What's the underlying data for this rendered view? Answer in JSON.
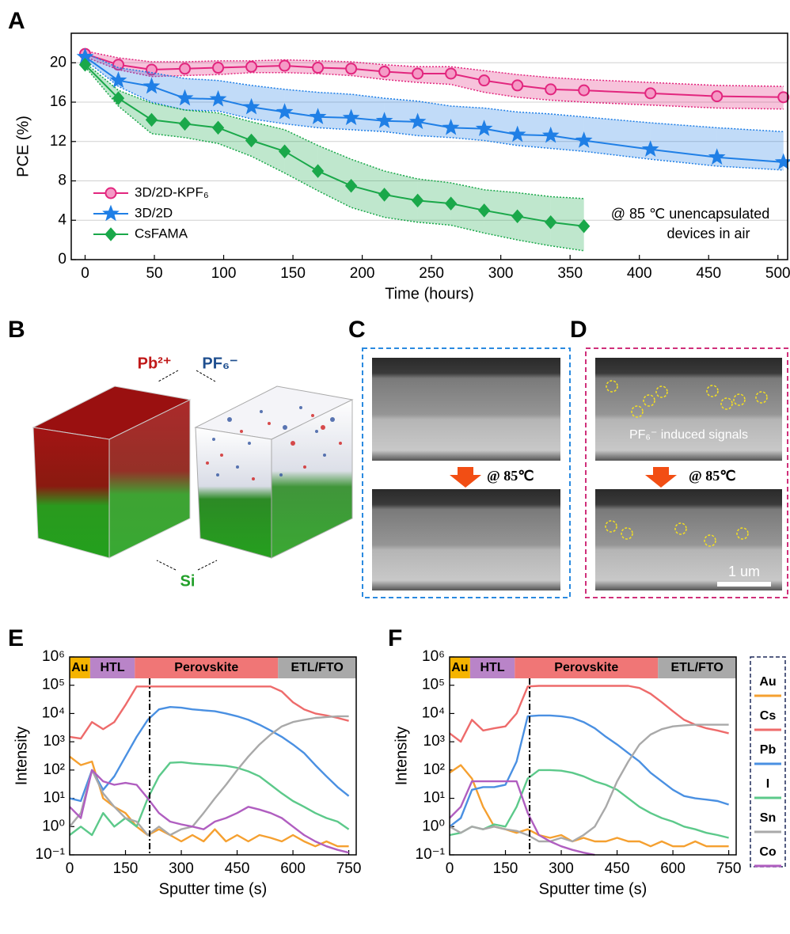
{
  "panel_labels": [
    "A",
    "B",
    "C",
    "D",
    "E",
    "F"
  ],
  "images": {
    "B": {
      "labels": [
        "Pb²⁺",
        "PF₆⁻",
        "Si"
      ]
    },
    "C": {
      "condition": "@ 85℃"
    },
    "D": {
      "annotation": "PF₆⁻ induced signals",
      "condition": "@ 85℃",
      "scale_bar": "1 um"
    }
  },
  "chart_data": [
    {
      "type": "line",
      "xlabel": "Time (hours)",
      "ylabel": "PCE (%)",
      "xlim": [
        -10,
        507
      ],
      "ylim": [
        0,
        23
      ],
      "xticks": [
        0,
        50,
        100,
        150,
        200,
        250,
        300,
        350,
        400,
        450,
        500
      ],
      "yticks": [
        0,
        4,
        8,
        12,
        16,
        20
      ],
      "grid": true,
      "legend": "lower left",
      "annotation": [
        "@ 85 ℃ unencapsulated",
        "devices in air"
      ],
      "series": [
        {
          "name": "3D/2D-KPF₆",
          "color": "#e2267e",
          "marker": "circle",
          "x": [
            0,
            24,
            48,
            72,
            96,
            120,
            144,
            168,
            192,
            216,
            240,
            264,
            288,
            312,
            336,
            360,
            408,
            456,
            504
          ],
          "values": [
            20.9,
            19.8,
            19.3,
            19.4,
            19.5,
            19.6,
            19.7,
            19.5,
            19.4,
            19.1,
            18.9,
            18.9,
            18.2,
            17.7,
            17.3,
            17.2,
            16.9,
            16.6,
            16.5
          ],
          "upper": [
            21.2,
            20.5,
            20.1,
            20.1,
            20.2,
            20.2,
            20.3,
            20.2,
            20.1,
            19.8,
            19.6,
            19.6,
            19.2,
            18.8,
            18.5,
            18.3,
            18.0,
            17.7,
            17.6
          ],
          "lower": [
            20.6,
            19.3,
            18.6,
            18.7,
            18.8,
            19.0,
            19.0,
            18.9,
            18.7,
            18.3,
            18.0,
            17.8,
            17.0,
            16.5,
            16.2,
            16.0,
            15.7,
            15.4,
            15.3
          ]
        },
        {
          "name": "3D/2D",
          "color": "#1f7fe6",
          "marker": "star",
          "x": [
            0,
            24,
            48,
            72,
            96,
            120,
            144,
            168,
            192,
            216,
            240,
            264,
            288,
            312,
            336,
            360,
            408,
            456,
            504
          ],
          "values": [
            20.6,
            18.2,
            17.6,
            16.4,
            16.3,
            15.5,
            15.0,
            14.5,
            14.4,
            14.1,
            14.0,
            13.4,
            13.3,
            12.7,
            12.6,
            12.1,
            11.2,
            10.4,
            9.9
          ],
          "upper": [
            21.0,
            19.5,
            19.0,
            18.4,
            18.2,
            17.7,
            17.3,
            17.0,
            16.8,
            16.4,
            16.1,
            15.6,
            15.4,
            15.0,
            14.8,
            14.5,
            13.9,
            13.4,
            13.0
          ],
          "lower": [
            20.3,
            17.6,
            16.0,
            15.2,
            15.1,
            14.3,
            13.8,
            13.4,
            13.2,
            13.0,
            12.6,
            12.4,
            12.1,
            11.6,
            11.3,
            11.0,
            10.2,
            9.5,
            9.1
          ]
        },
        {
          "name": "CsFAMA",
          "color": "#1aa84a",
          "marker": "diamond",
          "x": [
            0,
            24,
            48,
            72,
            96,
            120,
            144,
            168,
            192,
            216,
            240,
            264,
            288,
            312,
            336,
            360
          ],
          "values": [
            19.8,
            16.4,
            14.2,
            13.8,
            13.4,
            12.1,
            11.0,
            9.0,
            7.5,
            6.6,
            6.0,
            5.7,
            5.0,
            4.4,
            3.8,
            3.4
          ],
          "upper": [
            20.0,
            17.2,
            15.9,
            15.2,
            14.9,
            14.0,
            13.2,
            11.6,
            10.2,
            9.0,
            8.2,
            7.8,
            7.1,
            6.8,
            6.4,
            6.2
          ],
          "lower": [
            19.6,
            15.6,
            12.8,
            12.4,
            11.8,
            10.5,
            8.8,
            7.0,
            5.3,
            4.3,
            3.8,
            3.5,
            2.7,
            2.0,
            1.4,
            0.9
          ]
        }
      ]
    },
    {
      "type": "line",
      "log_y": true,
      "xlabel": "Sputter time (s)",
      "ylabel": "Intensity",
      "xlim": [
        0,
        770
      ],
      "ylim": [
        0.1,
        1000000
      ],
      "xticks": [
        0,
        150,
        300,
        450,
        600,
        750
      ],
      "yticks": [
        {
          "value": 0.1,
          "label": "10⁻¹"
        },
        {
          "value": 1,
          "label": "10⁰"
        },
        {
          "value": 10,
          "label": "10¹"
        },
        {
          "value": 100,
          "label": "10²"
        },
        {
          "value": 1000,
          "label": "10³"
        },
        {
          "value": 10000,
          "label": "10⁴"
        },
        {
          "value": 100000,
          "label": "10⁵"
        },
        {
          "value": 1000000,
          "label": "10⁶"
        }
      ],
      "regions": [
        {
          "label": "Au",
          "start": 0,
          "end": 55,
          "color": "#f5b400"
        },
        {
          "label": "HTL",
          "start": 55,
          "end": 175,
          "color": "#b984c8"
        },
        {
          "label": "Perovskite",
          "start": 175,
          "end": 560,
          "color": "#f07676"
        },
        {
          "label": "ETL/FTO",
          "start": 560,
          "end": 770,
          "color": "#a9a9a9"
        }
      ],
      "divider_x": 215,
      "x": [
        0,
        30,
        60,
        90,
        120,
        150,
        180,
        210,
        240,
        270,
        300,
        330,
        360,
        390,
        420,
        450,
        480,
        510,
        540,
        570,
        600,
        630,
        660,
        690,
        720,
        750
      ],
      "series": [
        {
          "name": "Au",
          "color": "#f5a030",
          "values": [
            300,
            150,
            200,
            10,
            5,
            3,
            1,
            0.5,
            0.8,
            0.5,
            0.3,
            0.5,
            0.3,
            0.8,
            0.3,
            0.5,
            0.3,
            0.5,
            0.4,
            0.3,
            0.5,
            0.3,
            0.2,
            0.3,
            0.2,
            0.2
          ]
        },
        {
          "name": "Cs",
          "color": "#ee6b6b",
          "values": [
            1500,
            1300,
            5000,
            2800,
            5000,
            20000,
            90000,
            90000,
            90000,
            90000,
            90000,
            90000,
            90000,
            90000,
            90000,
            90000,
            90000,
            90000,
            90000,
            60000,
            25000,
            14000,
            10000,
            8500,
            7000,
            5500
          ]
        },
        {
          "name": "Pb",
          "color": "#4a90e2",
          "values": [
            10,
            8,
            100,
            20,
            60,
            300,
            1500,
            6000,
            14000,
            17000,
            16000,
            14000,
            13000,
            12000,
            10000,
            8000,
            6000,
            4000,
            2500,
            1500,
            800,
            400,
            150,
            60,
            25,
            12
          ]
        },
        {
          "name": "I",
          "color": "#5cc98a",
          "values": [
            0.5,
            1,
            0.5,
            3,
            1,
            2,
            1,
            10,
            60,
            180,
            190,
            170,
            160,
            150,
            140,
            120,
            90,
            60,
            30,
            15,
            8,
            5,
            3,
            2,
            1.5,
            0.8
          ]
        },
        {
          "name": "Sn",
          "color": "#a9a9a9",
          "values": [
            1,
            3,
            100,
            15,
            5,
            2,
            1.5,
            0.5,
            1,
            0.5,
            0.8,
            1,
            3,
            10,
            30,
            100,
            300,
            800,
            1800,
            3500,
            5000,
            6000,
            7000,
            7500,
            8000,
            8000
          ]
        },
        {
          "name": "Co",
          "color": "#b05ec0",
          "values": [
            5,
            2,
            100,
            40,
            30,
            35,
            30,
            10,
            3,
            1.5,
            1.2,
            1,
            0.8,
            1.5,
            2,
            3,
            5,
            4,
            3,
            2,
            1,
            0.5,
            0.3,
            0.2,
            0.15,
            0.12
          ]
        }
      ]
    },
    {
      "type": "line",
      "log_y": true,
      "xlabel": "Sputter time (s)",
      "ylabel": "Intensity",
      "xlim": [
        0,
        770
      ],
      "ylim": [
        0.1,
        1000000
      ],
      "xticks": [
        0,
        150,
        300,
        450,
        600,
        750
      ],
      "yticks": [
        {
          "value": 0.1,
          "label": "10⁻¹"
        },
        {
          "value": 1,
          "label": "10⁰"
        },
        {
          "value": 10,
          "label": "10¹"
        },
        {
          "value": 100,
          "label": "10²"
        },
        {
          "value": 1000,
          "label": "10³"
        },
        {
          "value": 10000,
          "label": "10⁴"
        },
        {
          "value": 100000,
          "label": "10⁵"
        },
        {
          "value": 1000000,
          "label": "10⁶"
        }
      ],
      "regions": [
        {
          "label": "Au",
          "start": 0,
          "end": 55,
          "color": "#f5b400"
        },
        {
          "label": "HTL",
          "start": 55,
          "end": 175,
          "color": "#b984c8"
        },
        {
          "label": "Perovskite",
          "start": 175,
          "end": 560,
          "color": "#f07676"
        },
        {
          "label": "ETL/FTO",
          "start": 560,
          "end": 770,
          "color": "#a9a9a9"
        }
      ],
      "divider_x": 215,
      "x": [
        0,
        30,
        60,
        90,
        120,
        150,
        180,
        210,
        240,
        270,
        300,
        330,
        360,
        390,
        420,
        450,
        480,
        510,
        540,
        570,
        600,
        630,
        660,
        690,
        720,
        750
      ],
      "series": [
        {
          "name": "Au",
          "color": "#f5a030",
          "values": [
            80,
            150,
            50,
            5,
            1,
            0.8,
            0.6,
            0.8,
            0.5,
            0.4,
            0.5,
            0.3,
            0.4,
            0.3,
            0.3,
            0.4,
            0.3,
            0.3,
            0.2,
            0.3,
            0.2,
            0.2,
            0.3,
            0.2,
            0.2,
            0.2
          ]
        },
        {
          "name": "Cs",
          "color": "#ee6b6b",
          "values": [
            2000,
            1000,
            6000,
            2500,
            3000,
            3500,
            10000,
            90000,
            95000,
            95000,
            95000,
            95000,
            95000,
            95000,
            95000,
            95000,
            95000,
            80000,
            50000,
            25000,
            12000,
            6000,
            4000,
            3000,
            2500,
            2000
          ]
        },
        {
          "name": "Pb",
          "color": "#4a90e2",
          "values": [
            1,
            2,
            20,
            25,
            25,
            30,
            200,
            8000,
            8500,
            8500,
            8000,
            7000,
            5000,
            3000,
            1500,
            800,
            400,
            200,
            80,
            40,
            20,
            12,
            10,
            9,
            8,
            6
          ]
        },
        {
          "name": "I",
          "color": "#5cc98a",
          "values": [
            0.5,
            0.6,
            1,
            0.8,
            1.2,
            1,
            5,
            50,
            100,
            100,
            95,
            80,
            60,
            40,
            30,
            20,
            10,
            5,
            3,
            2,
            1.5,
            1,
            0.8,
            0.6,
            0.5,
            0.4
          ]
        },
        {
          "name": "Sn",
          "color": "#a9a9a9",
          "values": [
            1,
            0.6,
            1,
            0.8,
            1,
            0.8,
            0.7,
            0.5,
            0.3,
            0.3,
            0.4,
            0.3,
            0.5,
            1,
            5,
            40,
            200,
            800,
            1800,
            2800,
            3500,
            3800,
            4000,
            4000,
            4000,
            4000
          ]
        },
        {
          "name": "Co",
          "color": "#b05ec0",
          "values": [
            2,
            5,
            40,
            40,
            40,
            40,
            40,
            3,
            0.5,
            0.3,
            0.2,
            0.15,
            0.12,
            0.1,
            null,
            null,
            null,
            null,
            null,
            null,
            null,
            null,
            null,
            null,
            null,
            null
          ]
        }
      ]
    }
  ]
}
